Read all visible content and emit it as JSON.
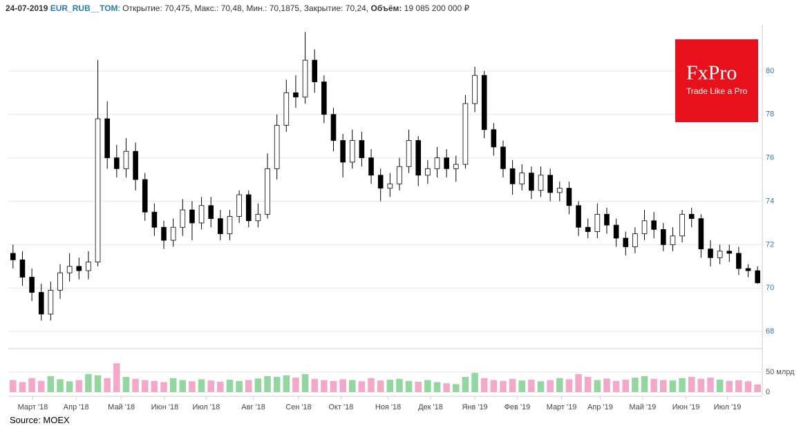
{
  "header": {
    "date": "24-07-2019",
    "ticker": "EUR_RUB__TOM",
    "summary": ": Открытие: 70,475, Макс.: 70,48, Мин.: 70,1875, Закрытие: 70,24,",
    "volume_label": "Объём:",
    "volume": "19 085 200 000 ₽"
  },
  "logo": {
    "name": "FxPro",
    "slogan": "Trade Like a Pro"
  },
  "source": "Source: MOEX",
  "chart_data": {
    "type": "candlestick",
    "xlim": [
      0,
      80
    ],
    "xticks": [
      {
        "value": 2.6,
        "label": "Март '18"
      },
      {
        "value": 7.2,
        "label": "Апр '18"
      },
      {
        "value": 12.0,
        "label": "Май '18"
      },
      {
        "value": 16.6,
        "label": "Июн '18"
      },
      {
        "value": 21.0,
        "label": "Июл '18"
      },
      {
        "value": 26.0,
        "label": "Авг '18"
      },
      {
        "value": 30.8,
        "label": "Сен '18"
      },
      {
        "value": 35.3,
        "label": "Окт '18"
      },
      {
        "value": 40.3,
        "label": "Ноя '18"
      },
      {
        "value": 44.8,
        "label": "Дек '18"
      },
      {
        "value": 49.5,
        "label": "Янв '19"
      },
      {
        "value": 54.0,
        "label": "Фев '19"
      },
      {
        "value": 58.7,
        "label": "Март '19"
      },
      {
        "value": 62.8,
        "label": "Апр '19"
      },
      {
        "value": 67.3,
        "label": "Май '19"
      },
      {
        "value": 71.9,
        "label": "Июн '19"
      },
      {
        "value": 76.3,
        "label": "Июл '19"
      }
    ],
    "ylim": [
      67.4,
      82
    ],
    "yticks": [
      68,
      70,
      72,
      74,
      76,
      78,
      80
    ],
    "grid": true,
    "open": [
      71.6,
      71.3,
      70.5,
      69.8,
      68.8,
      69.9,
      70.7,
      71.0,
      70.8,
      71.2,
      77.8,
      76.0,
      75.5,
      76.3,
      75.0,
      73.5,
      72.8,
      72.2,
      72.8,
      73.6,
      73.0,
      73.8,
      73.2,
      72.5,
      73.3,
      74.3,
      73.1,
      73.4,
      75.5,
      77.5,
      79.0,
      78.8,
      80.5,
      79.5,
      78.0,
      76.8,
      75.8,
      76.8,
      76.0,
      75.2,
      74.6,
      74.8,
      75.6,
      76.8,
      75.2,
      75.5,
      76.0,
      75.5,
      75.7,
      78.5,
      79.8,
      77.3,
      76.5,
      75.5,
      74.8,
      75.3,
      74.5,
      75.2,
      74.4,
      74.6,
      73.8,
      72.8,
      72.6,
      73.4,
      72.9,
      72.3,
      71.9,
      72.5,
      73.1,
      72.7,
      72.0,
      72.4,
      73.4,
      73.2,
      71.8,
      71.4,
      71.7,
      71.6,
      70.9,
      70.8
    ],
    "high": [
      72.0,
      71.7,
      70.9,
      70.2,
      70.3,
      71.1,
      71.6,
      71.4,
      71.7,
      80.5,
      78.6,
      76.6,
      76.9,
      76.7,
      75.3,
      73.9,
      73.1,
      73.2,
      74.1,
      74.0,
      74.2,
      74.2,
      73.6,
      73.6,
      74.5,
      74.5,
      73.9,
      76.2,
      78.0,
      79.6,
      79.8,
      81.8,
      81.0,
      79.8,
      78.3,
      77.1,
      77.3,
      77.2,
      76.4,
      75.5,
      75.3,
      76.0,
      77.3,
      77.0,
      75.9,
      76.5,
      76.4,
      76.1,
      78.9,
      80.2,
      80.0,
      77.6,
      76.8,
      75.9,
      75.7,
      75.6,
      75.6,
      75.5,
      74.9,
      74.9,
      74.0,
      73.2,
      73.9,
      73.7,
      73.2,
      72.6,
      72.8,
      73.6,
      73.5,
      73.0,
      72.8,
      73.6,
      73.7,
      73.4,
      72.2,
      72.0,
      72.0,
      71.9,
      71.1,
      71.0
    ],
    "low": [
      70.9,
      70.1,
      69.4,
      68.5,
      68.5,
      69.5,
      70.3,
      70.4,
      70.4,
      71.0,
      75.5,
      75.1,
      75.1,
      74.5,
      73.1,
      72.4,
      71.8,
      71.9,
      72.4,
      72.2,
      72.7,
      72.8,
      72.2,
      72.2,
      73.0,
      72.8,
      72.8,
      73.2,
      75.0,
      77.2,
      78.3,
      78.5,
      79.0,
      77.6,
      76.3,
      75.1,
      75.5,
      75.6,
      74.8,
      74.0,
      74.2,
      74.5,
      75.3,
      74.7,
      74.8,
      75.1,
      75.1,
      74.9,
      75.5,
      78.1,
      76.9,
      76.1,
      75.1,
      74.3,
      74.5,
      74.1,
      74.2,
      74.0,
      74.0,
      73.4,
      72.4,
      72.3,
      72.3,
      72.5,
      71.9,
      71.5,
      71.6,
      72.2,
      72.3,
      71.7,
      71.7,
      72.1,
      72.8,
      71.4,
      71.0,
      71.1,
      71.2,
      70.6,
      70.5,
      70.19
    ],
    "close": [
      71.3,
      70.5,
      69.8,
      68.8,
      69.9,
      70.7,
      71.0,
      70.8,
      71.2,
      77.8,
      76.0,
      75.5,
      76.3,
      75.0,
      73.5,
      72.8,
      72.2,
      72.8,
      73.6,
      73.0,
      73.8,
      73.2,
      72.5,
      73.3,
      74.3,
      73.1,
      73.4,
      75.5,
      77.5,
      79.0,
      78.8,
      80.5,
      79.5,
      78.0,
      76.8,
      75.8,
      76.8,
      76.0,
      75.2,
      74.6,
      74.8,
      75.6,
      76.8,
      75.2,
      75.5,
      76.0,
      75.5,
      75.7,
      78.5,
      79.8,
      77.3,
      76.5,
      75.5,
      74.8,
      75.3,
      74.5,
      75.2,
      74.4,
      74.6,
      73.8,
      72.8,
      72.6,
      73.4,
      72.9,
      72.3,
      71.9,
      72.5,
      73.1,
      72.7,
      72.0,
      72.4,
      73.4,
      73.2,
      71.8,
      71.4,
      71.7,
      71.6,
      70.9,
      70.8,
      70.24
    ],
    "volume": {
      "values": [
        30,
        25,
        35,
        28,
        40,
        32,
        27,
        30,
        45,
        42,
        35,
        72,
        38,
        33,
        30,
        28,
        25,
        35,
        30,
        27,
        32,
        29,
        26,
        31,
        28,
        30,
        34,
        40,
        38,
        42,
        36,
        45,
        33,
        30,
        28,
        32,
        30,
        27,
        35,
        29,
        31,
        33,
        28,
        26,
        30,
        25,
        22,
        20,
        38,
        48,
        35,
        30,
        28,
        33,
        29,
        31,
        27,
        30,
        35,
        32,
        45,
        38,
        30,
        34,
        28,
        31,
        36,
        40,
        33,
        30,
        29,
        35,
        38,
        33,
        36,
        31,
        28,
        30,
        27,
        19.0852
      ],
      "ylim": [
        0,
        100
      ],
      "yticks": [
        0,
        {
          "value": 50,
          "label": "50 млрд"
        }
      ],
      "colors": {
        "up": "#93d6a0",
        "down": "#f3a8c8"
      }
    },
    "colors": {
      "up": "#ffffff",
      "down": "#000000",
      "outline": "#000000"
    }
  }
}
